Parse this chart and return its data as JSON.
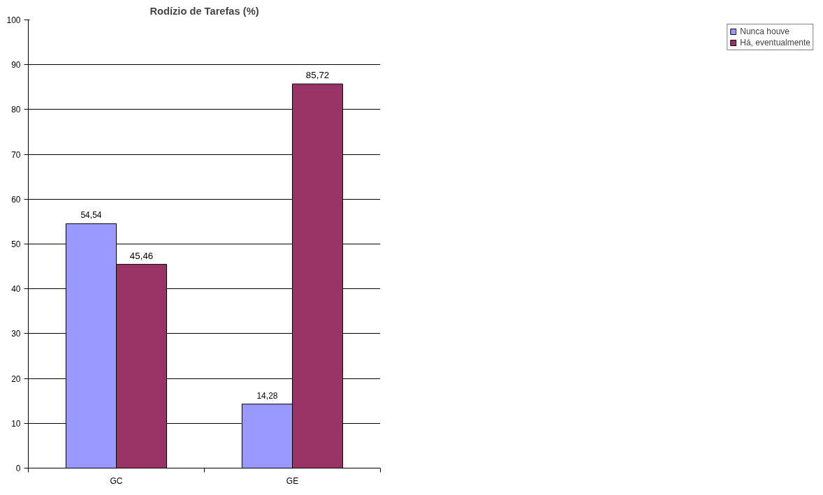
{
  "chart_data": {
    "type": "bar",
    "title": "Rodízio de Tarefas (%)",
    "categories": [
      "GC",
      "GE"
    ],
    "series": [
      {
        "name": "Nunca houve",
        "color": "#9999ff",
        "values": [
          54.54,
          14.28
        ],
        "value_labels": [
          "54,54",
          "14,28"
        ]
      },
      {
        "name": "Há, eventualmente",
        "color": "#993366",
        "values": [
          45.46,
          85.72
        ],
        "value_labels": [
          "45,46",
          "85,72"
        ]
      }
    ],
    "ylim": [
      0,
      100
    ],
    "yticks": [
      0,
      10,
      20,
      30,
      40,
      50,
      60,
      70,
      80,
      90,
      100
    ],
    "grid": "y",
    "legend": "right"
  }
}
